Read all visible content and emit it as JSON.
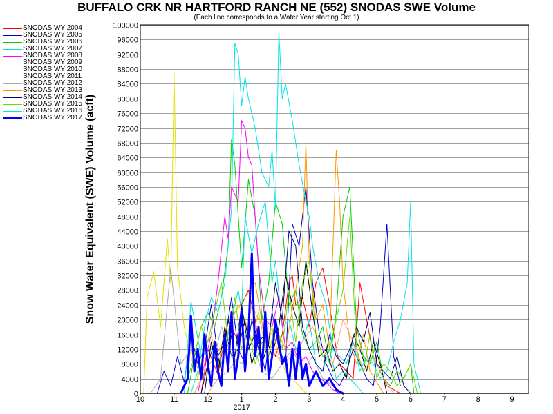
{
  "chart_data": {
    "type": "line",
    "title": "BUFFALO CRK NR HARTFORD RANCH NE (552) SNODAS SWE Volume",
    "subtitle": "(Each line corresponds to a Water Year starting Oct 1)",
    "ylabel": "Snow Water Equivalent (SWE) Volume (acft)",
    "xlabel": "",
    "ylim": [
      0,
      100000
    ],
    "yticks": [
      "0",
      "4000",
      "8000",
      "12000",
      "16000",
      "20000",
      "24000",
      "28000",
      "32000",
      "36000",
      "40000",
      "44000",
      "48000",
      "52000",
      "56000",
      "60000",
      "64000",
      "68000",
      "72000",
      "76000",
      "80000",
      "84000",
      "88000",
      "92000",
      "96000",
      "100000"
    ],
    "xlim": [
      10,
      21.5
    ],
    "xticks": [
      "10",
      "11",
      "12",
      "1",
      "2",
      "3",
      "4",
      "5",
      "6",
      "7",
      "8",
      "9"
    ],
    "year_label": "2017",
    "grid": true,
    "legend_placement": "left",
    "series": [
      {
        "name": "SNODAS WY 2004",
        "color": "#ff0000",
        "width": 1,
        "x": [
          11.8,
          12.0,
          12.3,
          12.6,
          12.9,
          13.0,
          13.1,
          13.2,
          13.4,
          13.6,
          13.8,
          14.0,
          14.2,
          14.4,
          14.5,
          14.6,
          14.8,
          15.0,
          15.2,
          15.4,
          15.6,
          15.8,
          15.9,
          16.1,
          16.3,
          16.5,
          16.7,
          16.9,
          17.1,
          17.3,
          17.5,
          17.7
        ],
        "y": [
          0,
          12000,
          5000,
          20000,
          14000,
          24000,
          26000,
          28000,
          20000,
          8000,
          14000,
          10000,
          16000,
          30000,
          32000,
          24000,
          26000,
          18000,
          30000,
          34000,
          24000,
          12000,
          8000,
          6000,
          4000,
          30000,
          20000,
          10000,
          6000,
          2000,
          1000,
          0
        ]
      },
      {
        "name": "SNODAS WY 2005",
        "color": "#0000cc",
        "width": 1,
        "x": [
          10.5,
          10.7,
          10.9,
          11.1,
          11.3,
          11.5,
          11.7,
          11.9,
          12.1,
          12.3,
          12.5,
          12.7,
          12.9,
          13.1,
          13.3,
          13.5,
          13.7,
          13.9,
          14.1,
          14.3,
          14.5,
          14.7,
          14.9,
          15.1,
          15.3,
          15.5,
          15.7,
          15.9,
          16.1,
          16.3,
          16.5,
          16.7,
          16.9,
          17.1,
          17.3,
          17.5,
          17.7
        ],
        "y": [
          0,
          6000,
          2000,
          10000,
          3000,
          16000,
          8000,
          12000,
          24000,
          10000,
          14000,
          26000,
          12000,
          8000,
          20000,
          14000,
          6000,
          22000,
          12000,
          8000,
          46000,
          40000,
          56000,
          30000,
          16000,
          8000,
          4000,
          2000,
          6000,
          12000,
          8000,
          4000,
          2000,
          18000,
          46000,
          10000,
          2000
        ]
      },
      {
        "name": "SNODAS WY 2006",
        "color": "#00cc00",
        "width": 1,
        "x": [
          11.4,
          11.6,
          11.8,
          12.0,
          12.2,
          12.4,
          12.6,
          12.7,
          12.8,
          13.0,
          13.2,
          13.4,
          13.6,
          13.8,
          14.0,
          14.2,
          14.4,
          14.6,
          14.8,
          15.0,
          15.2,
          15.4,
          15.6,
          15.8,
          16.0,
          16.2,
          16.4,
          16.6,
          16.8,
          17.0,
          17.2,
          17.4,
          17.6,
          17.8,
          18.0,
          18.1
        ],
        "y": [
          0,
          10000,
          18000,
          22000,
          18000,
          26000,
          40000,
          69000,
          62000,
          34000,
          58000,
          48000,
          20000,
          30000,
          52000,
          46000,
          24000,
          28000,
          16000,
          12000,
          14000,
          18000,
          8000,
          22000,
          48000,
          56000,
          18000,
          10000,
          8000,
          14000,
          4000,
          2000,
          6000,
          4000,
          8000,
          0
        ]
      },
      {
        "name": "SNODAS WY 2007",
        "color": "#00e0e0",
        "width": 1,
        "x": [
          11.3,
          11.5,
          11.8,
          12.1,
          12.4,
          12.6,
          12.8,
          12.9,
          13.0,
          13.1,
          13.3,
          13.5,
          13.7,
          13.9,
          14.0,
          14.2,
          14.4,
          14.6,
          14.8,
          15.0,
          15.2,
          15.4,
          15.6,
          15.8,
          16.0,
          16.2,
          16.4,
          16.6
        ],
        "y": [
          0,
          25000,
          10000,
          12000,
          8000,
          16000,
          24000,
          28000,
          22000,
          48000,
          38000,
          46000,
          52000,
          30000,
          36000,
          18000,
          20000,
          12000,
          14000,
          20000,
          8000,
          6000,
          12000,
          4000,
          6000,
          4000,
          2000,
          0
        ]
      },
      {
        "name": "SNODAS WY 2008",
        "color": "#ff00ff",
        "width": 1,
        "x": [
          11.7,
          11.9,
          12.1,
          12.3,
          12.5,
          12.6,
          12.7,
          12.9,
          13.0,
          13.1,
          13.2,
          13.3,
          13.5,
          13.7,
          13.9,
          14.1,
          14.3,
          14.5,
          14.7,
          14.9,
          15.1,
          15.3,
          15.5,
          15.7,
          15.9
        ],
        "y": [
          0,
          8000,
          16000,
          30000,
          48000,
          42000,
          56000,
          52000,
          74000,
          72000,
          64000,
          62000,
          34000,
          20000,
          18000,
          26000,
          12000,
          14000,
          8000,
          10000,
          6000,
          4000,
          3000,
          1000,
          0
        ]
      },
      {
        "name": "SNODAS WY 2009",
        "color": "#000000",
        "width": 1,
        "x": [
          11.9,
          12.1,
          12.3,
          12.5,
          12.7,
          12.9,
          13.1,
          13.3,
          13.5,
          13.7,
          13.9,
          14.1,
          14.3,
          14.5,
          14.7,
          14.9,
          15.1,
          15.3,
          15.5,
          15.7,
          15.9,
          16.1,
          16.3,
          16.5,
          16.7,
          16.9,
          17.1,
          17.3
        ],
        "y": [
          0,
          14000,
          6000,
          18000,
          10000,
          12000,
          20000,
          8000,
          14000,
          16000,
          10000,
          18000,
          32000,
          24000,
          18000,
          36000,
          22000,
          10000,
          12000,
          6000,
          8000,
          4000,
          16000,
          12000,
          6000,
          14000,
          8000,
          0
        ]
      },
      {
        "name": "SNODAS WY 2010",
        "color": "#e0e000",
        "width": 1,
        "x": [
          10.1,
          10.2,
          10.4,
          10.6,
          10.8,
          10.9,
          11.0,
          11.1,
          11.3,
          11.5,
          11.7,
          11.9,
          12.1,
          12.3,
          12.5,
          12.7,
          12.9,
          13.1,
          13.3,
          13.5,
          13.7,
          13.9,
          14.1,
          14.3,
          14.5,
          14.7,
          14.9
        ],
        "y": [
          0,
          26000,
          33000,
          18000,
          42000,
          30000,
          87000,
          34000,
          18000,
          10000,
          4000,
          12000,
          16000,
          8000,
          14000,
          20000,
          24000,
          20000,
          14000,
          22000,
          12000,
          18000,
          10000,
          6000,
          4000,
          2000,
          0
        ]
      },
      {
        "name": "SNODAS WY 2011",
        "color": "#ffa07a",
        "width": 1,
        "x": [
          12.0,
          12.3,
          12.6,
          12.9,
          13.1,
          13.3,
          13.6,
          13.9,
          14.2,
          14.5,
          14.8,
          15.1,
          15.4,
          15.7,
          16.0,
          16.3,
          16.6,
          16.9,
          17.2,
          17.5
        ],
        "y": [
          0,
          4000,
          6000,
          10000,
          14000,
          24000,
          18000,
          12000,
          8000,
          10000,
          14000,
          18000,
          12000,
          8000,
          20000,
          14000,
          6000,
          10000,
          4000,
          0
        ]
      },
      {
        "name": "SNODAS WY 2012",
        "color": "#aaaaaa",
        "width": 1,
        "x": [
          10.3,
          10.6,
          10.9,
          11.2,
          11.5,
          11.8,
          12.1,
          12.4,
          12.7,
          13.0,
          13.3,
          13.6,
          13.9,
          14.2,
          14.5,
          14.8,
          15.1,
          15.4,
          15.7,
          16.0
        ],
        "y": [
          0,
          4000,
          34000,
          8000,
          12000,
          4000,
          6000,
          18000,
          10000,
          8000,
          14000,
          6000,
          4000,
          8000,
          12000,
          6000,
          10000,
          4000,
          2000,
          0
        ]
      },
      {
        "name": "SNODAS WY 2013",
        "color": "#ff9900",
        "width": 1,
        "x": [
          11.6,
          11.9,
          12.2,
          12.5,
          12.8,
          13.1,
          13.4,
          13.7,
          14.0,
          14.3,
          14.6,
          14.8,
          14.9,
          15.0,
          15.2,
          15.4,
          15.6,
          15.8,
          15.9,
          16.0,
          16.2,
          16.4,
          16.6,
          16.8,
          17.0,
          17.2
        ],
        "y": [
          0,
          6000,
          10000,
          14000,
          22000,
          26000,
          30000,
          14000,
          18000,
          12000,
          28000,
          40000,
          68000,
          36000,
          20000,
          24000,
          12000,
          66000,
          52000,
          30000,
          14000,
          8000,
          16000,
          6000,
          3000,
          0
        ]
      },
      {
        "name": "SNODAS WY 2014",
        "color": "#000080",
        "width": 1,
        "x": [
          11.8,
          12.0,
          12.2,
          12.4,
          12.6,
          12.8,
          13.0,
          13.2,
          13.4,
          13.6,
          13.8,
          14.0,
          14.2,
          14.4,
          14.6,
          14.8,
          15.0,
          15.2,
          15.4,
          15.6,
          15.8,
          16.0,
          16.2,
          16.4,
          16.6,
          16.8,
          17.0,
          17.2,
          17.4,
          17.6,
          17.8,
          18.0
        ],
        "y": [
          0,
          8000,
          14000,
          6000,
          20000,
          10000,
          24000,
          12000,
          16000,
          8000,
          14000,
          30000,
          20000,
          44000,
          40000,
          18000,
          12000,
          8000,
          6000,
          16000,
          10000,
          8000,
          12000,
          18000,
          14000,
          22000,
          8000,
          6000,
          4000,
          10000,
          2000,
          0
        ]
      },
      {
        "name": "SNODAS WY 2015",
        "color": "#66dd00",
        "width": 1,
        "x": [
          11.2,
          11.4,
          11.6,
          11.8,
          12.0,
          12.2,
          12.4,
          12.6,
          12.8,
          13.0,
          13.2,
          13.4,
          13.6,
          13.8,
          14.0,
          14.2,
          14.4,
          14.6,
          14.8,
          15.0,
          15.2,
          15.4,
          15.6,
          15.8,
          16.0,
          16.2,
          16.4,
          16.6,
          16.8,
          17.0,
          17.2,
          17.4,
          17.6,
          17.8,
          18.0,
          18.2
        ],
        "y": [
          0,
          4000,
          10000,
          18000,
          14000,
          22000,
          30000,
          14000,
          26000,
          12000,
          18000,
          8000,
          14000,
          10000,
          20000,
          12000,
          28000,
          14000,
          30000,
          36000,
          16000,
          10000,
          12000,
          20000,
          28000,
          48000,
          12000,
          6000,
          16000,
          4000,
          8000,
          6000,
          2000,
          4000,
          8000,
          0
        ]
      },
      {
        "name": "SNODAS WY 2016",
        "color": "#00e5e5",
        "width": 1,
        "x": [
          11.5,
          11.7,
          11.9,
          12.1,
          12.3,
          12.5,
          12.7,
          12.8,
          12.9,
          13.0,
          13.1,
          13.2,
          13.4,
          13.6,
          13.8,
          13.9,
          14.0,
          14.1,
          14.2,
          14.3,
          14.5,
          14.7,
          14.9,
          15.0,
          15.1,
          15.3,
          15.5,
          15.7,
          15.9,
          16.1,
          16.3,
          16.5,
          16.7,
          16.9,
          17.1,
          17.3,
          17.5,
          17.7,
          17.9,
          18.0,
          18.1,
          18.3
        ],
        "y": [
          0,
          6000,
          18000,
          26000,
          22000,
          30000,
          50000,
          95000,
          92000,
          78000,
          86000,
          80000,
          72000,
          60000,
          56000,
          66000,
          50000,
          98000,
          80000,
          84000,
          74000,
          62000,
          52000,
          48000,
          40000,
          30000,
          24000,
          12000,
          10000,
          8000,
          14000,
          6000,
          10000,
          8000,
          4000,
          6000,
          14000,
          20000,
          30000,
          52000,
          8000,
          0
        ]
      },
      {
        "name": "SNODAS WY 2017",
        "color": "#0000ff",
        "width": 3,
        "x": [
          11.2,
          11.4,
          11.5,
          11.6,
          11.7,
          11.8,
          11.9,
          12.0,
          12.1,
          12.2,
          12.3,
          12.4,
          12.5,
          12.6,
          12.7,
          12.8,
          12.9,
          13.0,
          13.1,
          13.2,
          13.3,
          13.4,
          13.5,
          13.6,
          13.7,
          13.8,
          13.9,
          14.0,
          14.1,
          14.2,
          14.3,
          14.4,
          14.5,
          14.6,
          14.7,
          14.8,
          14.9,
          15.0,
          15.2,
          15.4,
          15.6,
          15.8,
          16.0
        ],
        "y": [
          0,
          4000,
          21000,
          6000,
          12000,
          4000,
          16000,
          8000,
          2000,
          14000,
          6000,
          2000,
          16000,
          6000,
          22000,
          4000,
          10000,
          23000,
          6000,
          16000,
          38000,
          10000,
          18000,
          6000,
          22000,
          4000,
          10000,
          20000,
          14000,
          8000,
          10000,
          2000,
          12000,
          4000,
          14000,
          4000,
          8000,
          2000,
          6000,
          2000,
          4000,
          1000,
          0
        ]
      }
    ]
  }
}
